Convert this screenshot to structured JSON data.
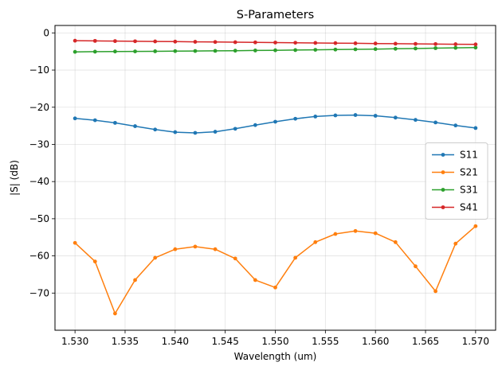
{
  "chart_data": {
    "type": "line",
    "title": "S-Parameters",
    "xlabel": "Wavelength (um)",
    "ylabel": "|S| (dB)",
    "xlim": [
      1.528,
      1.572
    ],
    "ylim": [
      -80,
      2
    ],
    "grid": true,
    "legend_position": "center-right",
    "x_ticks": [
      "1.530",
      "1.535",
      "1.540",
      "1.545",
      "1.550",
      "1.555",
      "1.560",
      "1.565",
      "1.570"
    ],
    "y_ticks": [
      "0",
      "−10",
      "−20",
      "−30",
      "−40",
      "−50",
      "−60",
      "−70"
    ],
    "x": [
      1.53,
      1.532,
      1.534,
      1.536,
      1.538,
      1.54,
      1.542,
      1.544,
      1.546,
      1.548,
      1.55,
      1.552,
      1.554,
      1.556,
      1.558,
      1.56,
      1.562,
      1.564,
      1.566,
      1.568,
      1.57
    ],
    "series": [
      {
        "name": "S11",
        "color": "#1f77b4",
        "values": [
          -23.0,
          -23.5,
          -24.2,
          -25.1,
          -26.0,
          -26.7,
          -26.9,
          -26.6,
          -25.8,
          -24.8,
          -23.9,
          -23.1,
          -22.5,
          -22.2,
          -22.1,
          -22.3,
          -22.8,
          -23.4,
          -24.1,
          -24.9,
          -25.6
        ]
      },
      {
        "name": "S21",
        "color": "#ff7f0e",
        "values": [
          -56.5,
          -61.5,
          -75.5,
          -66.5,
          -60.5,
          -58.2,
          -57.5,
          -58.2,
          -60.7,
          -66.5,
          -68.5,
          -60.5,
          -56.3,
          -54.1,
          -53.3,
          -53.9,
          -56.3,
          -62.8,
          -69.5,
          -56.7,
          -52.0
        ]
      },
      {
        "name": "S31",
        "color": "#2ca02c",
        "values": [
          -5.1,
          -5.05,
          -5.0,
          -4.98,
          -4.95,
          -4.9,
          -4.87,
          -4.83,
          -4.78,
          -4.73,
          -4.68,
          -4.62,
          -4.55,
          -4.48,
          -4.42,
          -4.35,
          -4.28,
          -4.2,
          -4.1,
          -4.02,
          -3.95
        ]
      },
      {
        "name": "S41",
        "color": "#d62728",
        "values": [
          -2.1,
          -2.15,
          -2.2,
          -2.25,
          -2.3,
          -2.35,
          -2.4,
          -2.45,
          -2.5,
          -2.55,
          -2.6,
          -2.65,
          -2.7,
          -2.75,
          -2.8,
          -2.85,
          -2.9,
          -2.95,
          -3.0,
          -3.05,
          -3.1
        ]
      }
    ]
  }
}
